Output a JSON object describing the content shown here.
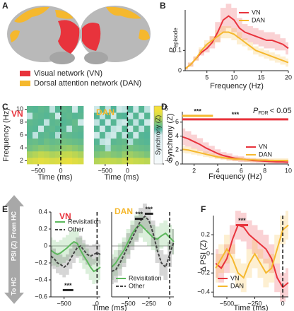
{
  "figure_a": {
    "label": "A",
    "legend": [
      {
        "name": "Visual network (VN)",
        "color": "#e8333c"
      },
      {
        "name": "Dorsal attention network (DAN)",
        "color": "#f5b82e"
      }
    ]
  },
  "chart_data": [
    {
      "type": "line",
      "label": "B",
      "xlabel": "Frequency (Hz)",
      "ylabel": {
        "main": "P",
        "sub": "episode"
      },
      "x": [
        1,
        2,
        3,
        4,
        5,
        6,
        7,
        8,
        9,
        10,
        11,
        12,
        13,
        14,
        15,
        16,
        17,
        18,
        19,
        20
      ],
      "series": [
        {
          "name": "VN",
          "color": "#e8333c",
          "values": [
            0.01,
            0.03,
            0.06,
            0.09,
            0.11,
            0.14,
            0.19,
            0.25,
            0.27,
            0.25,
            0.21,
            0.19,
            0.18,
            0.17,
            0.16,
            0.15,
            0.15,
            0.14,
            0.13,
            0.11
          ],
          "error": [
            0.005,
            0.01,
            0.01,
            0.015,
            0.02,
            0.03,
            0.05,
            0.06,
            0.06,
            0.06,
            0.05,
            0.04,
            0.04,
            0.04,
            0.04,
            0.04,
            0.04,
            0.04,
            0.03,
            0.03
          ]
        },
        {
          "name": "DAN",
          "color": "#f5b82e",
          "values": [
            0.01,
            0.03,
            0.06,
            0.1,
            0.13,
            0.15,
            0.17,
            0.19,
            0.19,
            0.18,
            0.16,
            0.14,
            0.12,
            0.1,
            0.09,
            0.08,
            0.07,
            0.06,
            0.05,
            0.04
          ],
          "error": [
            0.005,
            0.01,
            0.01,
            0.015,
            0.02,
            0.02,
            0.03,
            0.03,
            0.03,
            0.03,
            0.03,
            0.02,
            0.02,
            0.02,
            0.02,
            0.02,
            0.02,
            0.02,
            0.02,
            0.02
          ]
        }
      ],
      "xlim": [
        1,
        20
      ],
      "xticks": [
        5,
        10,
        15,
        20
      ],
      "ylim": [
        0,
        0.3
      ],
      "yticks": [
        0,
        0.1
      ],
      "legend": "upper right"
    },
    {
      "type": "heatmap",
      "label": "C",
      "title": "VN",
      "title_color": "#e8333c",
      "xlabel": "Time (ms)",
      "ylabel": "Frequency (Hz)",
      "xbins": [
        -750,
        -625,
        -500,
        -375,
        -250,
        -125,
        0,
        125,
        250,
        375,
        500
      ],
      "ybins": [
        1.5,
        2.5,
        3.5,
        4.5,
        5.5,
        6.5,
        7.5,
        8.5,
        9.5,
        10.5
      ],
      "values": [
        [
          3.4,
          3.6,
          3.8,
          3.7,
          3.5,
          3.6,
          3.8,
          3.9,
          3.7,
          3.5
        ],
        [
          2.6,
          2.8,
          3.0,
          2.9,
          2.7,
          2.8,
          3.0,
          3.1,
          2.9,
          2.7
        ],
        [
          1.8,
          2.0,
          2.2,
          2.1,
          1.9,
          2.0,
          2.3,
          2.4,
          2.2,
          2.0
        ],
        [
          1.5,
          1.6,
          1.4,
          1.7,
          1.5,
          1.6,
          1.8,
          1.7,
          1.6,
          1.5
        ],
        [
          1.2,
          0.2,
          1.3,
          1.4,
          1.2,
          0.3,
          1.5,
          1.4,
          1.3,
          1.2
        ],
        [
          1.3,
          1.2,
          0.1,
          1.3,
          1.4,
          1.2,
          1.3,
          0.2,
          1.4,
          1.3
        ],
        [
          1.4,
          1.3,
          1.2,
          0.2,
          1.3,
          1.4,
          1.2,
          1.3,
          1.5,
          0.1
        ],
        [
          0.2,
          1.4,
          1.3,
          1.2,
          1.4,
          0.1,
          1.3,
          1.4,
          1.2,
          1.3
        ],
        [
          1.3,
          1.2,
          1.4,
          1.3,
          0.2,
          1.2,
          1.4,
          1.3,
          0.1,
          1.2
        ]
      ],
      "colors": [
        "#f7fbfc",
        "#f2f8fa",
        "#ecf6f7",
        "#e6f3f5",
        "#e1f1f3",
        "#dceff1",
        "#4db29b",
        "#7cc47a",
        "#c2d84f",
        "#ecdf3e",
        "#f8e13a"
      ],
      "clim": [
        -5,
        5
      ],
      "xlim": [
        -750,
        500
      ],
      "xticks": [
        {
          "value": -500,
          "label": "−500"
        },
        0
      ],
      "ylim": [
        1.5,
        10.5
      ],
      "yticks": [
        2,
        4,
        6,
        8,
        10
      ],
      "vline": 0
    },
    {
      "type": "heatmap",
      "title": "DAN",
      "title_color": "#f5b82e",
      "xlabel": "Time (ms)",
      "xbins": [
        -750,
        -625,
        -500,
        -375,
        -250,
        -125,
        0,
        125,
        250,
        375,
        500
      ],
      "ybins": [
        1.5,
        2.5,
        3.5,
        4.5,
        5.5,
        6.5,
        7.5,
        8.5,
        9.5,
        10.5
      ],
      "values": [
        [
          2.8,
          3.0,
          3.1,
          3.0,
          2.9,
          3.2,
          3.3,
          3.1,
          3.0,
          2.9
        ],
        [
          2.0,
          2.2,
          2.3,
          2.1,
          2.0,
          2.4,
          2.5,
          2.3,
          2.2,
          2.0
        ],
        [
          1.5,
          1.6,
          0.3,
          1.7,
          1.6,
          1.8,
          1.9,
          1.7,
          1.6,
          1.5
        ],
        [
          1.2,
          0.2,
          0.1,
          1.3,
          1.4,
          1.5,
          0.3,
          1.4,
          1.3,
          1.2
        ],
        [
          0.1,
          1.2,
          0.2,
          0.1,
          1.3,
          0.2,
          1.2,
          0.1,
          1.2,
          1.1
        ],
        [
          1.2,
          0.1,
          1.1,
          0.2,
          0.1,
          1.2,
          0.1,
          1.3,
          0.2,
          1.2
        ],
        [
          0.2,
          1.1,
          0.1,
          1.2,
          0.2,
          0.1,
          1.2,
          0.2,
          1.1,
          0.1
        ],
        [
          1.1,
          0.2,
          1.2,
          0.1,
          1.2,
          1.1,
          0.2,
          1.2,
          0.1,
          1.2
        ],
        [
          0.1,
          1.2,
          0.2,
          1.1,
          0.1,
          0.2,
          1.1,
          0.1,
          1.2,
          0.2
        ]
      ],
      "colors": [
        "#f7fbfc",
        "#f2f8fa",
        "#ecf6f7",
        "#e6f3f5",
        "#e1f1f3",
        "#dceff1",
        "#4db29b",
        "#7cc47a",
        "#c2d84f",
        "#ecdf3e",
        "#f8e13a"
      ],
      "clim": [
        -5,
        5
      ],
      "xlim": [
        -750,
        500
      ],
      "xticks": [
        {
          "value": -500,
          "label": "−500"
        },
        0
      ],
      "ylim": [
        1.5,
        10.5
      ],
      "vline": 0,
      "colorbar": {
        "label": "Synchrony (Z)",
        "ticks": [
          5,
          {
            "value": -5,
            "label": "−5"
          }
        ]
      }
    },
    {
      "type": "line",
      "label": "D",
      "xlabel": "Frequency (Hz)",
      "ylabel": "Synchrony (Z)",
      "x": [
        1,
        1.5,
        2,
        2.5,
        3,
        3.5,
        4,
        4.5,
        5,
        5.5,
        6,
        6.5,
        7,
        7.5,
        8,
        8.5,
        9,
        9.5,
        10
      ],
      "series": [
        {
          "name": "VN",
          "color": "#e8333c",
          "values": [
            3.9,
            3.6,
            3.2,
            2.8,
            2.3,
            1.9,
            1.5,
            1.2,
            1.0,
            0.8,
            0.7,
            0.6,
            0.5,
            0.45,
            0.4,
            0.35,
            0.3,
            0.3,
            0.25
          ],
          "error": [
            1.2,
            1.1,
            1.0,
            0.9,
            0.8,
            0.7,
            0.6,
            0.5,
            0.5,
            0.4,
            0.4,
            0.3,
            0.3,
            0.3,
            0.3,
            0.3,
            0.3,
            0.3,
            0.3
          ]
        },
        {
          "name": "DAN",
          "color": "#f5b82e",
          "values": [
            2.1,
            2.0,
            1.8,
            1.6,
            1.4,
            1.2,
            1.0,
            0.9,
            0.8,
            0.7,
            0.7,
            0.6,
            0.6,
            0.55,
            0.55,
            0.5,
            0.5,
            0.5,
            0.5
          ],
          "error": [
            0.5,
            0.5,
            0.45,
            0.4,
            0.4,
            0.35,
            0.3,
            0.3,
            0.3,
            0.3,
            0.3,
            0.3,
            0.3,
            0.3,
            0.3,
            0.3,
            0.3,
            0.3,
            0.3
          ]
        }
      ],
      "xlim": [
        1,
        10
      ],
      "xticks": [
        2,
        4,
        6,
        8,
        10
      ],
      "ylim": [
        0,
        7.5
      ],
      "yticks": [
        0,
        2,
        4,
        6
      ],
      "legend": "lower right",
      "significance": [
        {
          "x": [
            1,
            10
          ],
          "y": 6.4,
          "color": "#e8333c",
          "text": "***"
        },
        {
          "x": [
            1,
            3.6
          ],
          "y": 6.9,
          "color": "#f5b82e",
          "text": "***"
        }
      ],
      "note": {
        "main": "P",
        "sub": "FDR",
        "rest": "< 0.05"
      }
    },
    {
      "type": "line",
      "label": "E",
      "title": "VN",
      "title_color": "#e8333c",
      "xlabel": "Time (ms)",
      "side_labels": {
        "top": "From HC",
        "middle": "PSI (Z)",
        "bottom": "To HC"
      },
      "x": [
        -700,
        -650,
        -600,
        -550,
        -500,
        -450,
        -400,
        -350,
        -300,
        -250,
        -200,
        -150,
        -100,
        -50,
        0,
        50
      ],
      "series": [
        {
          "name": "Revisitation",
          "color": "#5cb85c",
          "values": [
            -0.05,
            -0.08,
            -0.1,
            -0.08,
            -0.05,
            -0.02,
            0.02,
            0.05,
            0.03,
            -0.05,
            -0.12,
            -0.18,
            -0.25,
            -0.3,
            -0.28,
            -0.25
          ],
          "error": [
            0.15,
            0.15,
            0.15,
            0.15,
            0.15,
            0.15,
            0.15,
            0.15,
            0.15,
            0.15,
            0.15,
            0.15,
            0.15,
            0.15,
            0.15,
            0.15
          ]
        },
        {
          "name": "Other",
          "color": "#444444",
          "dash": true,
          "values": [
            -0.12,
            -0.15,
            -0.2,
            -0.22,
            -0.25,
            -0.22,
            -0.15,
            -0.08,
            -0.02,
            0.0,
            -0.05,
            -0.1,
            -0.12,
            -0.1,
            -0.08,
            -0.1
          ],
          "error": [
            0.12,
            0.12,
            0.12,
            0.12,
            0.12,
            0.12,
            0.12,
            0.12,
            0.12,
            0.12,
            0.12,
            0.12,
            0.12,
            0.12,
            0.12,
            0.12
          ]
        }
      ],
      "xlim": [
        -700,
        50
      ],
      "xticks": [
        {
          "value": -500,
          "label": "−500"
        },
        0
      ],
      "ylim": [
        -0.6,
        0.4
      ],
      "yticks": [
        0.4,
        0.2,
        0,
        {
          "value": -0.2,
          "label": "−0.2"
        },
        {
          "value": -0.4,
          "label": "−0.4"
        },
        {
          "value": -0.6,
          "label": "−0.6"
        }
      ],
      "legend": "upper left",
      "vline": 0,
      "hline": 0,
      "significance": [
        {
          "x": [
            -520,
            -360
          ],
          "y": -0.52,
          "color": "#222222",
          "text": "***"
        }
      ]
    },
    {
      "type": "line",
      "title": "DAN",
      "title_color": "#f5b82e",
      "x": [
        -700,
        -650,
        -600,
        -550,
        -500,
        -450,
        -400,
        -350,
        -300,
        -250,
        -200,
        -150,
        -100,
        -50,
        0,
        50
      ],
      "series": [
        {
          "name": "Revisitation",
          "color": "#5cb85c",
          "values": [
            -0.25,
            -0.2,
            -0.12,
            -0.05,
            0.05,
            0.15,
            0.22,
            0.25,
            0.2,
            0.15,
            0.1,
            0.08,
            0.12,
            0.15,
            0.1,
            0.05
          ],
          "error": [
            0.15,
            0.15,
            0.15,
            0.15,
            0.15,
            0.15,
            0.15,
            0.15,
            0.15,
            0.15,
            0.15,
            0.15,
            0.15,
            0.15,
            0.15,
            0.15
          ]
        },
        {
          "name": "Other",
          "color": "#444444",
          "dash": true,
          "values": [
            -0.3,
            -0.28,
            -0.2,
            -0.1,
            0.0,
            0.1,
            0.2,
            0.3,
            0.35,
            0.3,
            0.15,
            -0.05,
            -0.2,
            -0.25,
            -0.1,
            0.05
          ],
          "error": [
            0.15,
            0.15,
            0.15,
            0.15,
            0.15,
            0.15,
            0.15,
            0.15,
            0.15,
            0.15,
            0.15,
            0.15,
            0.15,
            0.15,
            0.15,
            0.15
          ]
        }
      ],
      "xlim": [
        -700,
        50
      ],
      "xticks": [
        {
          "value": -500,
          "label": "−500"
        },
        {
          "value": -250,
          "label": "−250"
        },
        0
      ],
      "ylim": [
        -0.6,
        0.4
      ],
      "legend": "lower left",
      "vline": 0,
      "hline": 0,
      "significance": [
        {
          "x": [
            -420,
            -320
          ],
          "y": 0.32,
          "color": "#222222",
          "text": "***"
        },
        {
          "x": [
            -300,
            -200
          ],
          "y": 0.38,
          "color": "#222222",
          "text": "***"
        }
      ]
    },
    {
      "type": "line",
      "label": "F",
      "xlabel": "Time (ms)",
      "ylabel": "Δ PSI (Z)",
      "x": [
        -600,
        -550,
        -500,
        -450,
        -400,
        -350,
        -300,
        -250,
        -200,
        -150,
        -100,
        -50,
        0,
        50
      ],
      "series": [
        {
          "name": "VN",
          "color": "#e8333c",
          "values": [
            -0.1,
            -0.15,
            -0.05,
            0.15,
            0.3,
            0.28,
            0.2,
            0.15,
            0.1,
            0.05,
            -0.05,
            -0.25,
            -0.35,
            -0.3
          ],
          "error": [
            0.15,
            0.15,
            0.15,
            0.15,
            0.15,
            0.15,
            0.15,
            0.15,
            0.15,
            0.15,
            0.15,
            0.15,
            0.15,
            0.15
          ]
        },
        {
          "name": "DAN",
          "color": "#f5b82e",
          "values": [
            -0.15,
            -0.05,
            0.05,
            -0.05,
            -0.2,
            -0.25,
            -0.1,
            0.0,
            -0.1,
            -0.2,
            -0.15,
            0.05,
            0.25,
            0.3
          ],
          "error": [
            0.15,
            0.15,
            0.15,
            0.15,
            0.15,
            0.15,
            0.15,
            0.15,
            0.15,
            0.15,
            0.15,
            0.15,
            0.15,
            0.15
          ]
        }
      ],
      "xlim": [
        -620,
        50
      ],
      "xticks": [
        {
          "value": -500,
          "label": "−500"
        },
        {
          "value": -250,
          "label": "−250"
        },
        0
      ],
      "ylim": [
        -0.45,
        0.4
      ],
      "yticks": [
        0.2,
        0,
        {
          "value": -0.2,
          "label": "−0.2"
        },
        {
          "value": -0.4,
          "label": "−0.4"
        }
      ],
      "legend": "lower left",
      "vline": 0,
      "significance": [
        {
          "x": [
            -420,
            -310
          ],
          "y": 0.3,
          "color": "#e8333c",
          "text": "***"
        }
      ]
    }
  ]
}
